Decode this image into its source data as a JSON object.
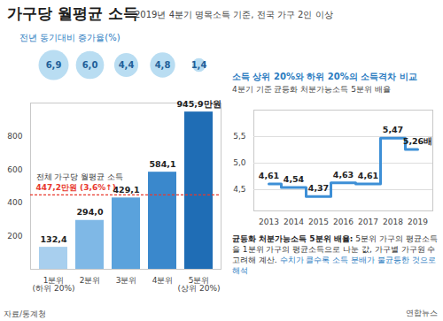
{
  "title": "가구당 월평균 소득",
  "subtitle": "2019년 4분기 명목소득 기준, 전국 가구 2인 이상",
  "source": "자료/통계청",
  "credit": "연합뉴스",
  "chart_data": [
    {
      "type": "bar",
      "categories": [
        "1분위\n(하위 20%)",
        "2분위",
        "3분위",
        "4분위",
        "5분위\n(상위 20%)"
      ],
      "values": [
        132.4,
        294.0,
        429.1,
        584.1,
        945.9
      ],
      "value_labels": [
        "132,4",
        "294,0",
        "429,1",
        "584,1",
        "945,9만원"
      ],
      "colors": [
        "#a8cfee",
        "#7fb8e6",
        "#5aa2dc",
        "#3a88cc",
        "#1f6db5"
      ],
      "ylim": [
        0,
        1000
      ],
      "yticks": [
        200,
        400,
        600,
        800
      ],
      "grid": false,
      "data_labels": true,
      "growth": {
        "title": "전년 동기대비 증가율(%)",
        "values": [
          6.9,
          6.0,
          4.4,
          4.8,
          1.4
        ],
        "value_labels": [
          "6,9",
          "6,0",
          "4,4",
          "4,8",
          "1,4"
        ],
        "color": "#b9ddf2"
      },
      "reference": {
        "title": "전체 가구당 월평균 소득",
        "value": 447.2,
        "label": "447,2만원 (3,6%↑)",
        "color": "#e8382d"
      }
    },
    {
      "type": "line",
      "title": "소득 상위 20%와 하위 20%의 소득격차 비교",
      "subtitle": "4분기 기준 균등화 처분가능소득 5분위 배율",
      "categories": [
        "2013",
        "2014",
        "2015",
        "2016",
        "2017",
        "2018",
        "2019"
      ],
      "values": [
        4.61,
        4.54,
        4.37,
        4.63,
        4.61,
        5.47,
        5.26
      ],
      "value_labels": [
        "4,61",
        "4,54",
        "4,37",
        "4,63",
        "4,61",
        "5,47",
        "5,26배"
      ],
      "color": "#3d8fd6",
      "line_style": "step",
      "ylim": [
        4.1,
        6.0
      ],
      "yticks": [
        {
          "value": 4.5,
          "label": "4,5"
        },
        {
          "value": 5.0,
          "label": "5,0"
        },
        {
          "value": 5.5,
          "label": "5,5"
        }
      ],
      "grid": true,
      "data_labels": true,
      "note": {
        "term": "균등화 처분가능소득 5분위 배율:",
        "text": "5분위 가구의 평균소득을 1분위 가구의 평균소득으로 나눈 값, 가구별 가구원 수 고려해 계산.",
        "highlight": "수치가 클수록 소득 분배가 불균등한 것으로 해석"
      }
    }
  ]
}
